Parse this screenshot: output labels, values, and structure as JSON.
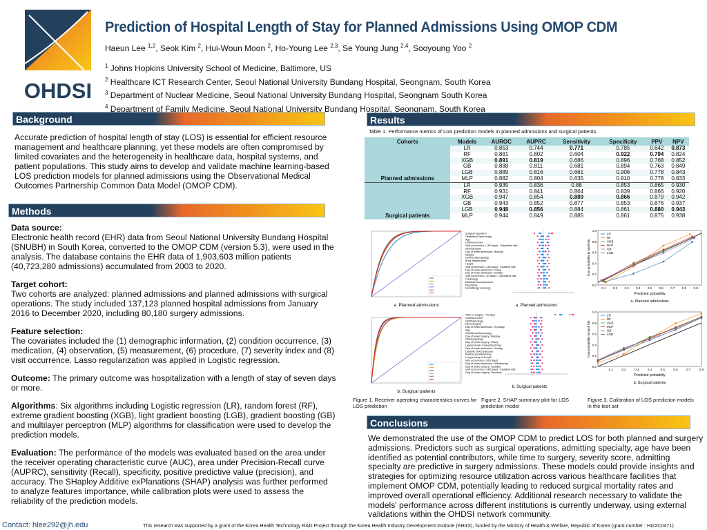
{
  "header": {
    "logo_text": "OHDSI",
    "title": "Prediction of Hospital Length of Stay for Planned Admissions Using OMOP CDM",
    "authors": [
      {
        "name": "Haeun Lee",
        "sup": "1,2"
      },
      {
        "name": "Seok Kim",
        "sup": "2"
      },
      {
        "name": "Hui-Woun Moon",
        "sup": "2"
      },
      {
        "name": "Ho-Young Lee",
        "sup": "2,3"
      },
      {
        "name": "Se Young Jung",
        "sup": "2,4"
      },
      {
        "name": "Sooyoung Yoo",
        "sup": "2"
      }
    ],
    "affiliations": [
      {
        "sup": "1",
        "text": "Johns Hopkins University School of Medicine, Baltimore, US"
      },
      {
        "sup": "2",
        "text": "Healthcare ICT Research Center, Seoul National University Bundang Hospital, Seongnam, South Korea"
      },
      {
        "sup": "3",
        "text": "Department of Nuclear Medicine, Seoul National University Bundang Hospital, Seongnam South Korea"
      },
      {
        "sup": "4",
        "text": "Department of Family Medicine, Seoul National University Bundang Hospital, Seongnam, South Korea"
      }
    ]
  },
  "colors": {
    "navy": "#23405c",
    "orange": "#e8692a",
    "yellow": "#f9c515",
    "table_header": "#a9d7db"
  },
  "background": {
    "heading": "Background",
    "text": "Accurate prediction of hospital length of stay (LOS) is essential for efficient resource management and healthcare planning, yet these models are often compromised by limited covariates and the heterogeneity in healthcare data, hospital systems, and patient populations. This study aims to develop and validate machine learning-based LOS prediction models for planned admissions using the Observational Medical Outcomes Partnership Common Data Model (OMOP CDM)."
  },
  "methods": {
    "heading": "Methods",
    "sections": [
      {
        "label": "Data source:",
        "text": "Electronic health record (EHR) data from Seoul National University Bundang Hospital (SNUBH) in South Korea, converted to the OMOP CDM (version 5.3), were used in the analysis. The database contains the EHR data of 1,903,603 million patients (40,723,280 admissions) accumulated from 2003 to 2020.",
        "block": true
      },
      {
        "label": "Target cohort:",
        "text": "Two cohorts are analyzed: planned admissions and planned admissions with surgical operations. The study included 137,123 planned hospital admissions from January 2016 to December 2020, including 80,180 surgery admissions.",
        "block": true
      },
      {
        "label": "Feature selection:",
        "text": "The covariates included the (1) demographic information, (2) condition occurrence, (3) medication, (4) observation, (5) measurement, (6) procedure, (7) severity index and (8) visit occurrence. Lasso regularization was applied in Logistic regression.",
        "block": true
      },
      {
        "label": "Outcome:",
        "text": " The primary outcome was hospitalization with a length of stay of seven days or more.",
        "block": false
      },
      {
        "label": "Algorithms",
        "text": ": Six algorithms including Logistic regression (LR), random forest (RF), extreme gradient boosting (XGB), light gradient boosting (LGB), gradient boosting (GB) and multilayer perceptron (MLP) algorithms for classification were used to develop the prediction models.",
        "block": false
      },
      {
        "label": "Evaluation:",
        "text": " The performance of the models was evaluated based on the area under the receiver operating characteristic curve (AUC), area under Precision-Recall curve (AUPRC), sensitivity (Recall), specificity, positive predictive value (precision), and accuracy. The SHapley Additive exPlanations (SHAP) analysis was further performed to analyze features importance, while calibration plots were used to assess the reliability of the prediction models.",
        "block": false
      }
    ]
  },
  "results": {
    "heading": "Results",
    "table_caption": "Table 1. Performance metrics of LoS prediction models in planned admissions and surgical patients.",
    "columns": [
      "Cohorts",
      "Models",
      "AUROC",
      "AUPRC",
      "Sensitivity",
      "Specificity",
      "PPV",
      "NPV"
    ],
    "cohorts": [
      {
        "name": "Planned admissions",
        "rows": [
          {
            "model": "LR",
            "values": [
              "0.853",
              "0.744",
              "0.771",
              "0.785",
              "0.642",
              "0.873"
            ],
            "bold": [
              2,
              5
            ]
          },
          {
            "model": "RF",
            "values": [
              "0.881",
              "0.802",
              "0.604",
              "0.922",
              "0.794",
              "0.824"
            ],
            "bold": [
              3,
              4
            ]
          },
          {
            "model": "XGB",
            "values": [
              "0.891",
              "0.819",
              "0.686",
              "0.896",
              "0.768",
              "0.852"
            ],
            "bold": [
              0,
              1
            ]
          },
          {
            "model": "GB",
            "values": [
              "0.888",
              "0.811",
              "0.681",
              "0.894",
              "0.763",
              "0.849"
            ],
            "bold": []
          },
          {
            "model": "LGB",
            "values": [
              "0.889",
              "0.816",
              "0.661",
              "0.906",
              "0.778",
              "0.843"
            ],
            "bold": []
          },
          {
            "model": "MLP",
            "values": [
              "0.882",
              "0.804",
              "0.635",
              "0.910",
              "0.778",
              "0.833"
            ],
            "bold": []
          }
        ]
      },
      {
        "name": "Surgical patients",
        "rows": [
          {
            "model": "LR",
            "values": [
              "0.935",
              "0.836",
              "0.88",
              "0.853",
              "0.865",
              "0.930"
            ],
            "bold": []
          },
          {
            "model": "RF",
            "values": [
              "0.931",
              "0.841",
              "0.864",
              "0.839",
              "0.866",
              "0.920"
            ],
            "bold": []
          },
          {
            "model": "XGB",
            "values": [
              "0.947",
              "0.854",
              "0.889",
              "0.866",
              "0.879",
              "0.942"
            ],
            "bold": [
              2,
              3
            ]
          },
          {
            "model": "GB",
            "values": [
              "0.943",
              "0.852",
              "0.877",
              "0.853",
              "0.876",
              "0.937"
            ],
            "bold": []
          },
          {
            "model": "LGB",
            "values": [
              "0.948",
              "0.856",
              "0.884",
              "0.861",
              "0.880",
              "0.943"
            ],
            "bold": [
              0,
              1,
              4,
              5
            ]
          },
          {
            "model": "MLP",
            "values": [
              "0.944",
              "0.849",
              "0.885",
              "0.861",
              "0.875",
              "0.938"
            ],
            "bold": []
          }
        ]
      }
    ],
    "model_colors": {
      "LR": "#1f77b4",
      "RF": "#ff7f0e",
      "XGB": "#2ca02c",
      "MLP": "#d62728",
      "GB": "#9467bd",
      "LGB": "#8c564b"
    },
    "figure1": {
      "caption": "Figure 1. Receiver operating characteristics curves for LOS prediction",
      "panels": [
        "a. Planned admissions",
        "b. Surgical patients"
      ]
    },
    "figure2": {
      "caption": "Figure 2. SHAP summary plot for LOS prediction model",
      "panels": [
        {
          "label": "a. Planned admissions",
          "features": [
            "Surgical operation",
            "Obstetrics/Gynecology",
            "Age",
            "Charlson Index",
            "Visit occurrence (-180 days) : Outpatient visit",
            "Neurosurgery",
            "Day of week admission: Monday",
            "Weight",
            "Otorhinolaryngology",
            "Body temperature",
            "Height",
            "Visit occurrence (-180 days) : Inpatient visit",
            "Day of week admission: Friday",
            "Day of week admission: Sunday",
            "Visit occurrence (-30 days) : Outpatient visit",
            "Cardiology",
            "Diastolic blood pressure",
            "Psychiatry",
            "Hematology oncology"
          ]
        },
        {
          "label": "b. Surgical patients",
          "features": [
            "Time to surgery <=5 days",
            "Charlson index",
            "Ophthalmology",
            "Neurosurgery",
            "Day of week admission: Thursday",
            "Age",
            "Obstetrics/Gynecology",
            "Day of week surgery: Monday",
            "Otolaryngology",
            "Day of week surgery: Friday",
            "Laparoscopic cholecystectomy",
            "Day of week admission: Sunday",
            "Diastolic blood pressure",
            "Radical prostatectomy",
            "Lumpectomy of breast",
            "Visit occurrence (-365 days)",
            "Day of week admission : Wednesday",
            "Day of week surgery: Tuesday",
            "Visit occurrence (-180 days) : Inpatient visit",
            "Day of week surgery: Thursday"
          ]
        }
      ]
    },
    "figure3": {
      "caption": "Figure 3. Calibration of LOS prediction models in the test set",
      "xlabel": "Predicted probability",
      "ylabel": "True probability in each bin",
      "legend": [
        "LR",
        "RF",
        "XGB",
        "MLP",
        "GB",
        "LGB"
      ],
      "panels": [
        {
          "label": "a. Planned admissions",
          "xlim": [
            0.05,
            0.95
          ],
          "xticks": [
            "0.1",
            "0.2",
            "0.3",
            "0.4",
            "0.5",
            "0.6",
            "0.7",
            "0.8",
            "0.9"
          ],
          "yticks": [
            "0.0",
            "0.2",
            "0.4",
            "0.6",
            "0.8",
            "1.0"
          ],
          "series": {
            "LR": [
              [
                0.11,
                0.06
              ],
              [
                0.36,
                0.21
              ],
              [
                0.62,
                0.43
              ],
              [
                0.87,
                0.79
              ]
            ],
            "RF": [
              [
                0.12,
                0.05
              ],
              [
                0.36,
                0.34
              ],
              [
                0.62,
                0.72
              ],
              [
                0.85,
                0.93
              ]
            ],
            "XGB": [
              [
                0.1,
                0.08
              ],
              [
                0.36,
                0.37
              ],
              [
                0.62,
                0.62
              ],
              [
                0.88,
                0.87
              ]
            ],
            "MLP": [
              [
                0.09,
                0.08
              ],
              [
                0.36,
                0.4
              ],
              [
                0.62,
                0.65
              ],
              [
                0.87,
                0.89
              ]
            ],
            "GB": [
              [
                0.08,
                0.09
              ],
              [
                0.36,
                0.36
              ],
              [
                0.62,
                0.59
              ],
              [
                0.89,
                0.86
              ]
            ],
            "LGB": [
              [
                0.09,
                0.07
              ],
              [
                0.36,
                0.38
              ],
              [
                0.62,
                0.64
              ],
              [
                0.88,
                0.87
              ]
            ]
          }
        },
        {
          "label": "b. Surgical patients",
          "xlim": [
            0.0,
            0.8
          ],
          "xticks": [
            "0.1",
            "0.2",
            "0.3",
            "0.4",
            "0.5",
            "0.6",
            "0.7",
            "0.8"
          ],
          "yticks": [
            "0.0",
            "0.2",
            "0.4",
            "0.6",
            "0.8",
            "1.0"
          ],
          "series": {
            "LR": [
              [
                0,
                0.1
              ],
              [
                0.2,
                0.3
              ],
              [
                0.4,
                0.48
              ],
              [
                0.6,
                0.68
              ],
              [
                0.8,
                0.89
              ]
            ],
            "RF": [
              [
                0,
                0.07
              ],
              [
                0.2,
                0.23
              ],
              [
                0.4,
                0.52
              ],
              [
                0.6,
                0.79
              ],
              [
                0.8,
                0.97
              ]
            ],
            "XGB": [
              [
                0,
                0.11
              ],
              [
                0.2,
                0.31
              ],
              [
                0.4,
                0.54
              ],
              [
                0.6,
                0.7
              ],
              [
                0.8,
                0.9
              ]
            ],
            "MLP": [
              [
                0,
                0.11
              ],
              [
                0.2,
                0.32
              ],
              [
                0.4,
                0.52
              ],
              [
                0.6,
                0.72
              ],
              [
                0.8,
                0.91
              ]
            ],
            "GB": [
              [
                0,
                0.12
              ],
              [
                0.2,
                0.34
              ],
              [
                0.4,
                0.5
              ],
              [
                0.6,
                0.67
              ],
              [
                0.8,
                0.9
              ]
            ],
            "LGB": [
              [
                0,
                0.11
              ],
              [
                0.2,
                0.32
              ],
              [
                0.4,
                0.51
              ],
              [
                0.6,
                0.71
              ],
              [
                0.8,
                0.91
              ]
            ]
          }
        }
      ]
    }
  },
  "conclusions": {
    "heading": "Conclusions",
    "text": "We demonstrated the use of  the OMOP CDM to predict LOS for both planned and surgery admissions. Predictors such as surgical operations, admitting specialty, age have been identified as potential contributors, while time to surgery, severity score, admitting specialty are predictive in surgery admissions. These models could provide insights and strategies for optimizing resource utilization across various healthcare facilities that implement OMOP CDM, potentially leading to reduced surgical mortality rates and improved overall operational efficiency. Additional research necessary to validate the models' performance across different institutions is currently underway, using external validations within the OHDSI network community."
  },
  "footer": {
    "contact": "Contact:  hlee292@jh.edu",
    "funding": "This research was supported by a grant of the Korea Health Technology R&D Project through the Korea Health Industry Development Institute (KHIDI), funded by the Ministry of Health & Welfare, Republic of Korea (grant number : HI22C0471)."
  }
}
